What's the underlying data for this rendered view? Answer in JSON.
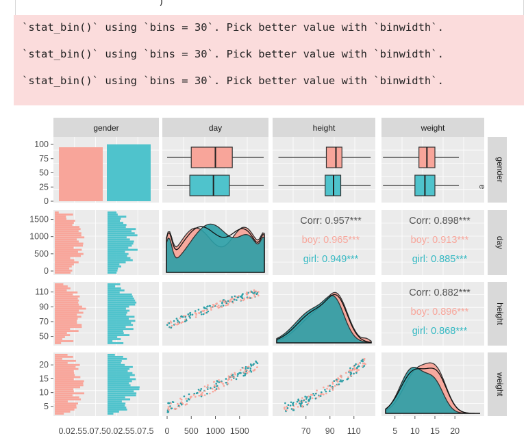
{
  "console": {
    "top_fragment": ")",
    "warnings": [
      "`stat_bin()` using `bins = 30`. Pick better value with `binwidth`.",
      "`stat_bin()` using `bins = 30`. Pick better value with `binwidth`.",
      "`stat_bin()` using `bins = 30`. Pick better value with `binwidth`."
    ],
    "warning_bg": "#fbdcdc"
  },
  "chart_data": {
    "type": "scatter",
    "variables": [
      "gender",
      "day",
      "height",
      "weight"
    ],
    "groups": [
      {
        "name": "boy",
        "color": "#f8a59a"
      },
      {
        "name": "girl",
        "color": "#4fc3cc"
      }
    ],
    "axis_ticks": {
      "gender_count": [
        "100",
        "75",
        "50",
        "25",
        "0"
      ],
      "day": [
        "1500",
        "1000",
        "500",
        "0"
      ],
      "height": [
        "110",
        "90",
        "70",
        "50"
      ],
      "weight": [
        "20",
        "15",
        "10",
        "5"
      ],
      "x_gender_count": "0.02.55.07.50.02.55.07.5",
      "x_day": [
        "0",
        "500",
        "1000",
        "1500"
      ],
      "x_height": [
        "70",
        "90",
        "110"
      ],
      "x_weight": [
        "5",
        "10",
        "15",
        "20"
      ]
    },
    "gender_counts": [
      {
        "group": "boy",
        "value": 95
      },
      {
        "group": "girl",
        "value": 100
      }
    ],
    "correlations": [
      {
        "pair": "day-height",
        "overall": "Corr: 0.957***",
        "boy": "boy: 0.965***",
        "girl": "girl: 0.949***"
      },
      {
        "pair": "day-weight",
        "overall": "Corr: 0.898***",
        "boy": "boy: 0.913***",
        "girl": "girl: 0.885***"
      },
      {
        "pair": "height-weight",
        "overall": "Corr: 0.882***",
        "boy": "boy: 0.896***",
        "girl": "girl: 0.868***"
      }
    ],
    "boxplots": [
      {
        "variable": "day",
        "group": "boy",
        "min": 0,
        "q1": 500,
        "median": 1000,
        "q3": 1350,
        "max": 2000
      },
      {
        "variable": "day",
        "group": "girl",
        "min": 0,
        "q1": 470,
        "median": 960,
        "q3": 1290,
        "max": 2000
      },
      {
        "variable": "height",
        "group": "boy",
        "min": 47,
        "q1": 87,
        "median": 95,
        "q3": 100,
        "max": 124
      },
      {
        "variable": "height",
        "group": "girl",
        "min": 47,
        "q1": 86,
        "median": 93,
        "q3": 99,
        "max": 124
      },
      {
        "variable": "weight",
        "group": "boy",
        "min": 2,
        "q1": 11,
        "median": 13,
        "q3": 15,
        "max": 21
      },
      {
        "variable": "weight",
        "group": "girl",
        "min": 2,
        "q1": 10,
        "median": 12.5,
        "q3": 15,
        "max": 21
      }
    ],
    "legend_fragment": "e",
    "grid": true
  }
}
